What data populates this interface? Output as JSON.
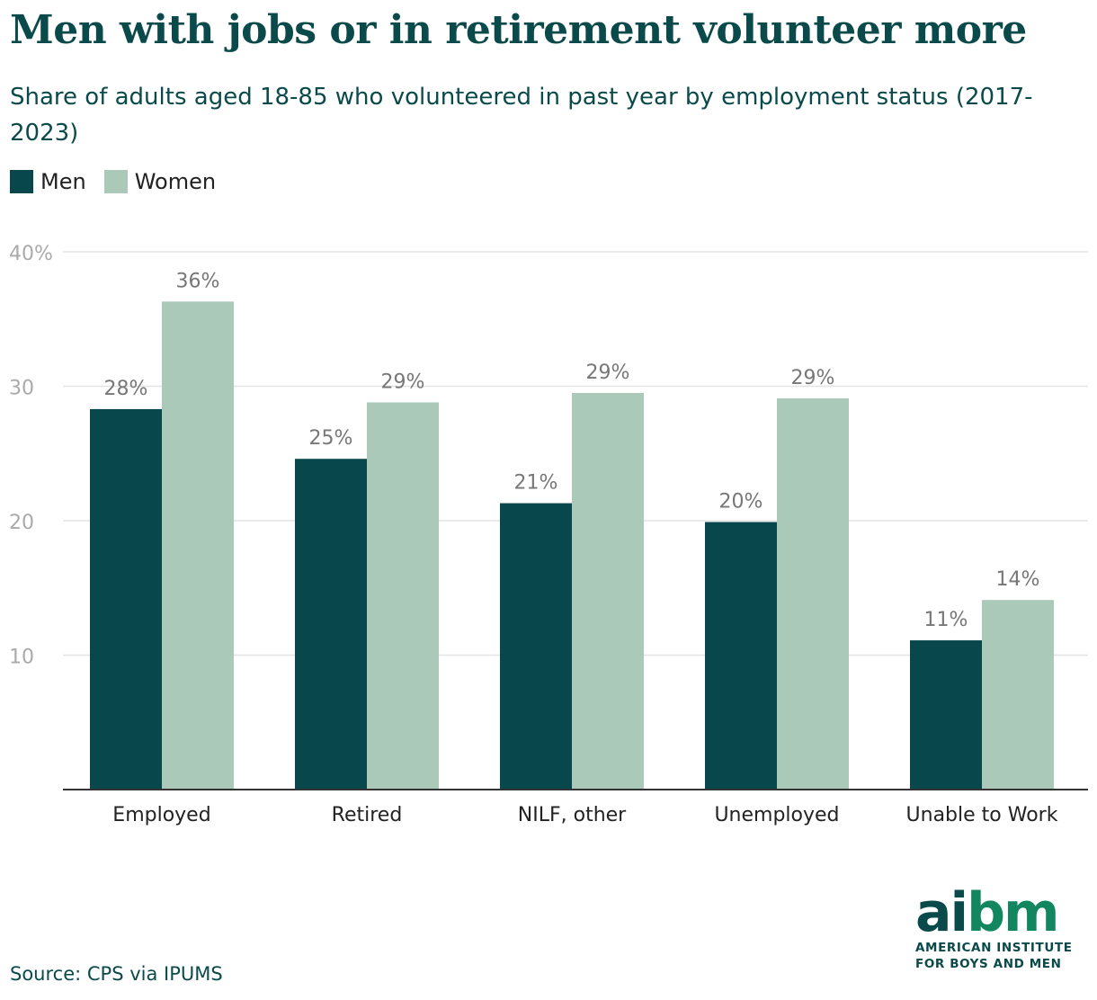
{
  "title": "Men with jobs or in retirement volunteer more",
  "subtitle": "Share of adults aged 18-85 who volunteered in past year by employment status (2017-2023)",
  "source": "Source: CPS via IPUMS",
  "logo": {
    "a": "a",
    "i": "i",
    "b": "b",
    "m": "m",
    "line1": "AMERICAN INSTITUTE",
    "line2": "FOR BOYS AND MEN"
  },
  "colors": {
    "men": "#08474c",
    "women": "#abc9b9",
    "grid": "#e3e3e3",
    "axis": "#333333",
    "tick": "#aaaaaa",
    "label": "#777777"
  },
  "chart_data": {
    "type": "bar",
    "categories": [
      "Employed",
      "Retired",
      "NILF, other",
      "Unemployed",
      "Unable to Work"
    ],
    "series": [
      {
        "name": "Men",
        "values": [
          28.3,
          24.6,
          21.3,
          19.9,
          11.1
        ],
        "labels": [
          "28%",
          "25%",
          "21%",
          "20%",
          "11%"
        ]
      },
      {
        "name": "Women",
        "values": [
          36.3,
          28.8,
          29.5,
          29.1,
          14.1
        ],
        "labels": [
          "36%",
          "29%",
          "29%",
          "29%",
          "14%"
        ]
      }
    ],
    "yticks": [
      10,
      20,
      30,
      40
    ],
    "ytick_labels": [
      "10",
      "20",
      "30",
      "40%"
    ],
    "ylim": [
      0,
      40
    ],
    "grid": true,
    "legend": "top-left"
  }
}
